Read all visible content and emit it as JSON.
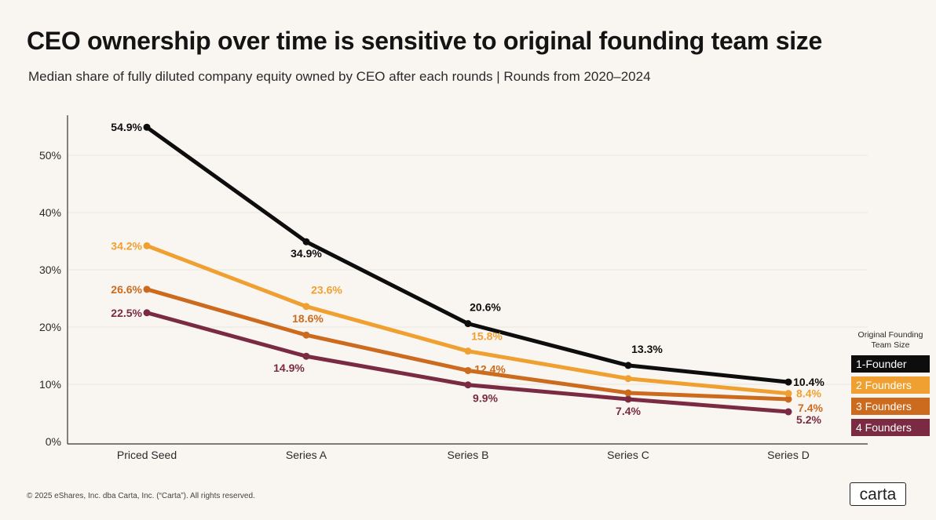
{
  "header": {
    "title": "CEO ownership over time is sensitive to original founding team size",
    "subtitle": "Median share of fully diluted company equity owned by CEO after each rounds | Rounds from 2020–2024"
  },
  "chart_data": {
    "type": "line",
    "title": "CEO ownership over time is sensitive to original founding team size",
    "subtitle": "Median share of fully diluted company equity owned by CEO after each rounds | Rounds from 2020–2024",
    "xlabel": "",
    "ylabel": "",
    "categories": [
      "Priced Seed",
      "Series A",
      "Series B",
      "Series C",
      "Series D"
    ],
    "ylim": [
      0,
      57
    ],
    "yticks": [
      0,
      10,
      20,
      30,
      40,
      50
    ],
    "ytick_labels": [
      "0%",
      "10%",
      "20%",
      "30%",
      "40%",
      "50%"
    ],
    "grid": true,
    "legend_position": "bottom-right",
    "series": [
      {
        "name": "1-Founder",
        "color": "#0d0d0d",
        "values": [
          54.9,
          34.9,
          20.6,
          13.3,
          10.4
        ],
        "labels": [
          "54.9%",
          "34.9%",
          "20.6%",
          "13.3%",
          "10.4%"
        ]
      },
      {
        "name": "2 Founders",
        "color": "#f0a030",
        "values": [
          34.2,
          23.6,
          15.8,
          11.0,
          8.4
        ],
        "labels": [
          "34.2%",
          "23.6%",
          "15.8%",
          "",
          "8.4%"
        ]
      },
      {
        "name": "3 Founders",
        "color": "#cc6a1e",
        "values": [
          26.6,
          18.6,
          12.4,
          8.5,
          7.4
        ],
        "labels": [
          "26.6%",
          "18.6%",
          "12.4%",
          "",
          "7.4%"
        ]
      },
      {
        "name": "4 Founders",
        "color": "#7a2a42",
        "values": [
          22.5,
          14.9,
          9.9,
          7.4,
          5.2
        ],
        "labels": [
          "22.5%",
          "14.9%",
          "9.9%",
          "7.4%",
          "5.2%"
        ]
      }
    ]
  },
  "legend": {
    "title_line1": "Original Founding",
    "title_line2": "Team Size",
    "items": [
      "1-Founder",
      "2 Founders",
      "3 Founders",
      "4 Founders"
    ]
  },
  "footer": {
    "copyright": "© 2025 eShares, Inc. dba Carta, Inc. (“Carta”). All rights reserved.",
    "logo_text": "carta"
  }
}
